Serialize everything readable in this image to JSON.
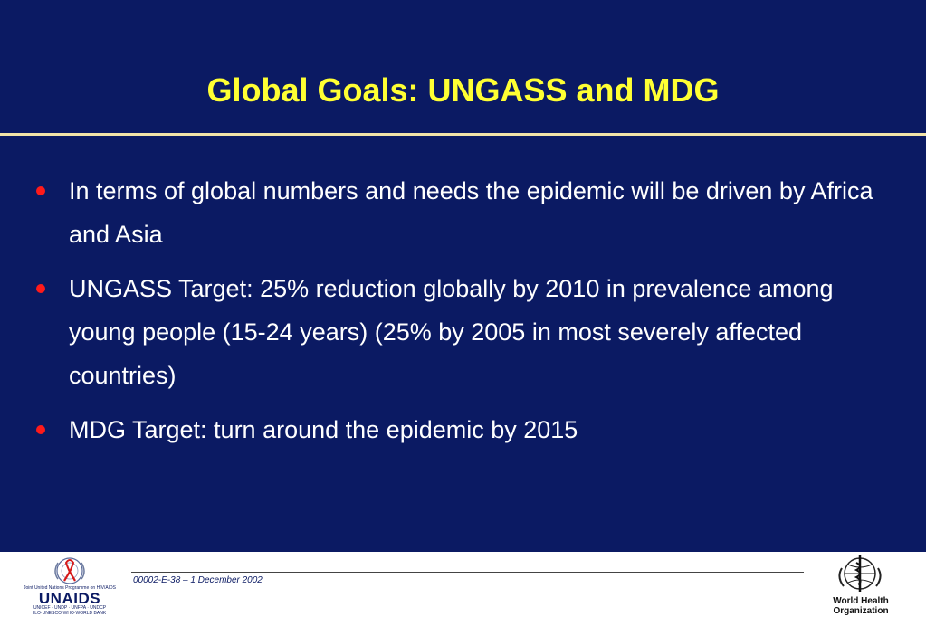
{
  "slide": {
    "title": "Global Goals: UNGASS and MDG",
    "bullets": [
      "In terms of global numbers and needs the epidemic will be driven by Africa and Asia",
      "UNGASS Target: 25% reduction globally by 2010 in prevalence among young people (15-24 years) (25% by 2005 in most severely affected countries)",
      "MDG Target: turn around the epidemic by 2015"
    ]
  },
  "footer": {
    "reference": "00002-E-38 – 1 December 2002",
    "unaids_logo": {
      "tagline": "Joint United Nations Programme on HIV/AIDS",
      "wordmark": "UNAIDS",
      "cosponsors_line1": "UNICEF · UNDP · UNFPA · UNDCP",
      "cosponsors_line2": "ILO·UNESCO·WHO·WORLD BANK"
    },
    "who_logo": {
      "line1": "World Health",
      "line2": "Organization"
    }
  },
  "colors": {
    "background": "#0b1a63",
    "title": "#ffff33",
    "bullet_text": "#ffffff",
    "bullet_dot": "#ff1a1a",
    "title_rule": "#f2e4a8"
  }
}
